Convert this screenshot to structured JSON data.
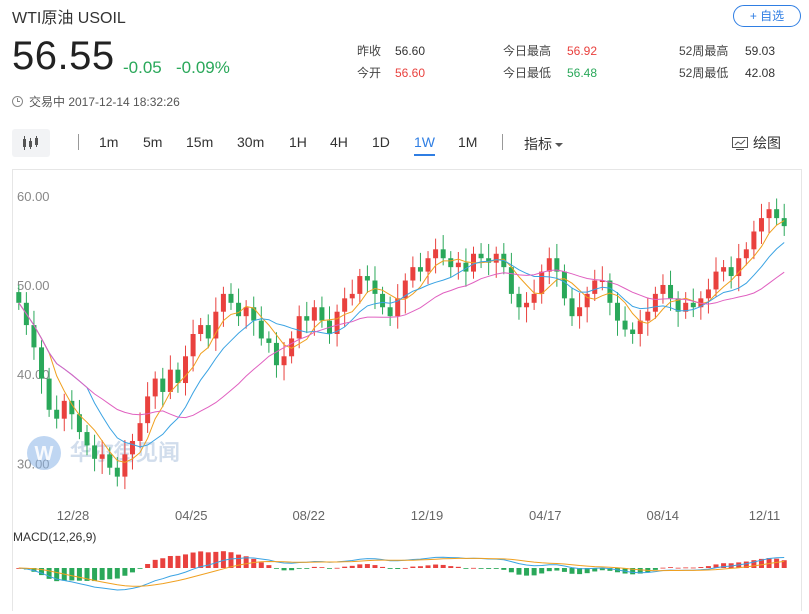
{
  "header": {
    "title": "WTI原油 USOIL",
    "follow_label": "+ 自选",
    "price": "56.55",
    "change": "-0.05",
    "change_pct": "-0.09%",
    "status": "交易中 2017-12-14 18:32:26"
  },
  "stats": {
    "prev_close": {
      "label": "昨收",
      "value": "56.60"
    },
    "open": {
      "label": "今开",
      "value": "56.60"
    },
    "day_high": {
      "label": "今日最高",
      "value": "56.92"
    },
    "day_low": {
      "label": "今日最低",
      "value": "56.48"
    },
    "wk52_high": {
      "label": "52周最高",
      "value": "59.03"
    },
    "wk52_low": {
      "label": "52周最低",
      "value": "42.08"
    }
  },
  "toolbar": {
    "periods": [
      "1m",
      "5m",
      "15m",
      "30m",
      "1H",
      "4H",
      "1D",
      "1W",
      "1M"
    ],
    "active_period": "1W",
    "indicator_label": "指标",
    "draw_label": "绘图"
  },
  "colors": {
    "up": "#e9413e",
    "down": "#2aa85a",
    "accent": "#2f7ee3",
    "ma_short": "#f0a020",
    "ma_mid": "#3aa3e3",
    "ma_long": "#e060c0"
  },
  "watermark": "华尔街见闻",
  "macd_label": "MACD(12,26,9)",
  "chart_data": {
    "type": "candlestick",
    "title": "",
    "y_ticks": [
      "60.00",
      "50.00",
      "40.00",
      "30.00"
    ],
    "ylim": [
      27,
      62
    ],
    "x_ticks": [
      "12/28",
      "04/25",
      "08/22",
      "12/19",
      "04/17",
      "08/14",
      "12/11"
    ],
    "close": [
      48.0,
      45.5,
      43.0,
      39.5,
      36.0,
      35.0,
      37.0,
      35.5,
      33.5,
      32.0,
      30.5,
      31.0,
      29.5,
      28.5,
      31.0,
      32.5,
      34.5,
      37.5,
      39.5,
      38.0,
      40.5,
      39.0,
      42.0,
      44.5,
      45.5,
      44.0,
      47.0,
      49.0,
      48.0,
      46.5,
      47.5,
      46.0,
      44.0,
      43.5,
      41.0,
      42.0,
      44.0,
      46.5,
      46.0,
      47.5,
      46.0,
      44.5,
      47.0,
      48.5,
      49.0,
      51.0,
      50.5,
      49.0,
      47.5,
      46.5,
      48.5,
      50.5,
      52.0,
      51.5,
      53.0,
      54.0,
      53.0,
      52.0,
      52.5,
      51.5,
      53.5,
      53.0,
      52.5,
      53.5,
      52.0,
      49.0,
      47.5,
      48.0,
      49.0,
      51.5,
      53.0,
      51.5,
      48.5,
      46.5,
      47.5,
      49.0,
      50.5,
      50.5,
      48.0,
      46.0,
      45.0,
      44.5,
      46.0,
      47.0,
      49.0,
      50.0,
      48.5,
      47.0,
      48.0,
      47.5,
      48.5,
      49.5,
      51.5,
      52.0,
      51.0,
      53.0,
      54.0,
      56.0,
      57.5,
      58.5,
      57.5,
      56.6
    ],
    "ylabel": "",
    "xlabel": "",
    "grid": false
  }
}
